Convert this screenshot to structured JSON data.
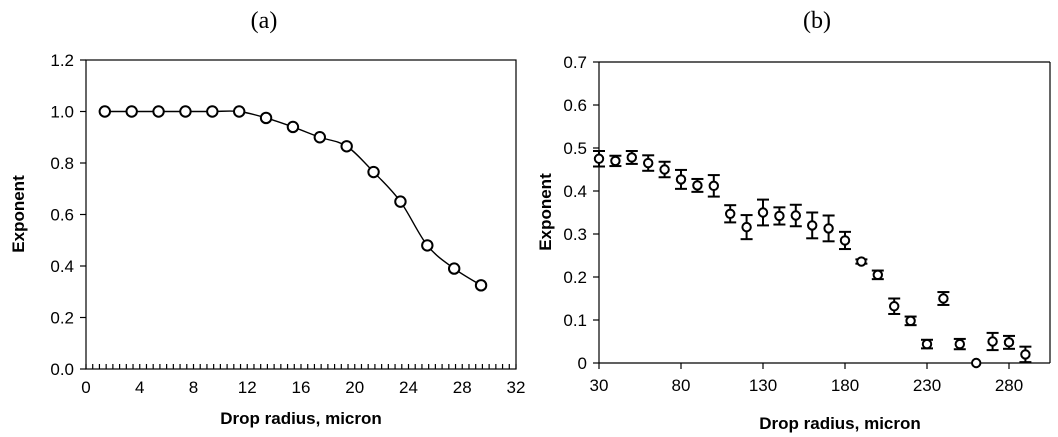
{
  "chart_data": [
    {
      "type": "line",
      "panel_label": "(a)",
      "xlabel": "Drop radius, micron",
      "ylabel": "Exponent",
      "xlim": [
        0,
        32
      ],
      "ylim": [
        0,
        1.2
      ],
      "xticks": [
        "0",
        "4",
        "8",
        "12",
        "16",
        "20",
        "24",
        "28",
        "32"
      ],
      "yticks": [
        "0.0",
        "0.2",
        "0.4",
        "0.6",
        "0.8",
        "1.0",
        "1.2"
      ],
      "xminor_step": 0.5,
      "frame": "full box",
      "grid": false,
      "marker": "open circle",
      "x": [
        1.4,
        3.4,
        5.4,
        7.4,
        9.4,
        11.4,
        13.4,
        15.4,
        17.4,
        19.4,
        21.4,
        23.4,
        25.4,
        27.4,
        29.4
      ],
      "y": [
        1.0,
        1.0,
        1.0,
        1.0,
        1.0,
        1.0,
        0.975,
        0.94,
        0.9,
        0.865,
        0.765,
        0.65,
        0.48,
        0.39,
        0.325
      ]
    },
    {
      "type": "scatter",
      "panel_label": "(b)",
      "xlabel": "Drop radius, micron",
      "ylabel": "Exponent",
      "xlim": [
        30,
        305
      ],
      "ylim": [
        0,
        0.7
      ],
      "xticks": [
        "30",
        "80",
        "130",
        "180",
        "230",
        "280"
      ],
      "yticks": [
        "0",
        "0.1",
        "0.2",
        "0.3",
        "0.4",
        "0.5",
        "0.6",
        "0.7"
      ],
      "frame": "left and bottom axes with top and right lines",
      "grid": false,
      "marker": "open circle with error bars",
      "x": [
        30,
        40,
        50,
        60,
        70,
        80,
        90,
        100,
        110,
        120,
        130,
        140,
        150,
        160,
        170,
        180,
        190,
        200,
        210,
        220,
        230,
        240,
        250,
        260,
        270,
        280,
        290
      ],
      "y": [
        0.475,
        0.47,
        0.478,
        0.465,
        0.45,
        0.427,
        0.413,
        0.412,
        0.347,
        0.316,
        0.35,
        0.342,
        0.343,
        0.32,
        0.313,
        0.285,
        0.236,
        0.205,
        0.132,
        0.098,
        0.044,
        0.15,
        0.044,
        0.0,
        0.05,
        0.048,
        0.02
      ],
      "err": [
        0.018,
        0.012,
        0.015,
        0.018,
        0.018,
        0.022,
        0.015,
        0.025,
        0.02,
        0.028,
        0.03,
        0.02,
        0.025,
        0.03,
        0.03,
        0.02,
        0.005,
        0.01,
        0.018,
        0.01,
        0.01,
        0.015,
        0.012,
        0.0,
        0.02,
        0.015,
        0.018
      ]
    }
  ]
}
